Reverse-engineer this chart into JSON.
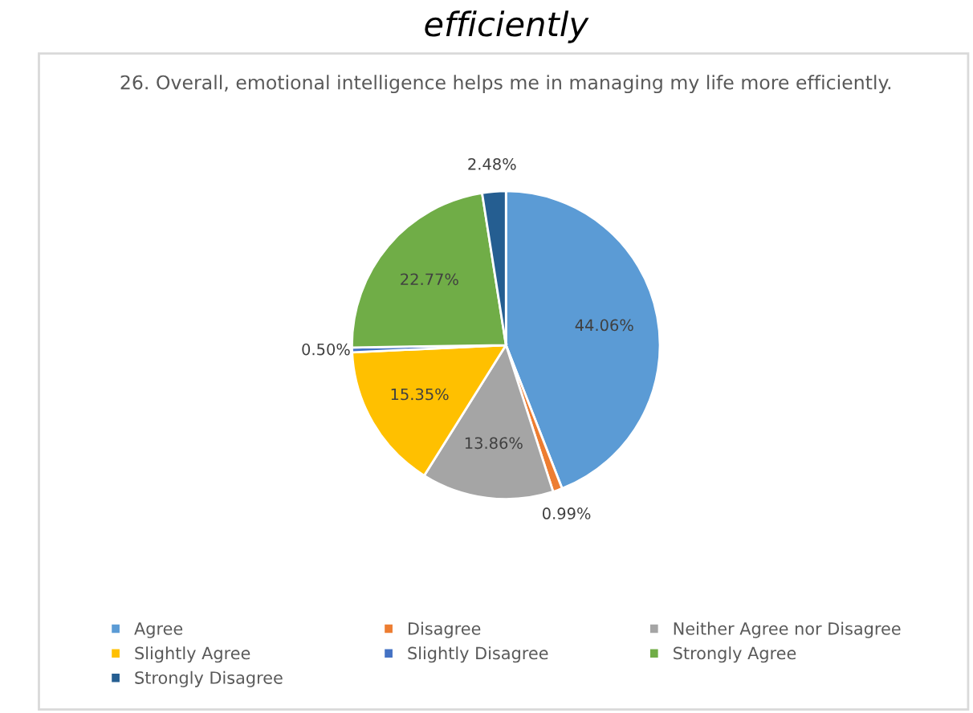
{
  "chart_data": {
    "type": "pie",
    "title": "26. Overall, emotional intelligence helps me in managing my life more efficiently.",
    "annotations": [
      "efficiently"
    ],
    "categories": [
      "Agree",
      "Disagree",
      "Neither Agree nor Disagree",
      "Slightly Agree",
      "Slightly Disagree",
      "Strongly Agree",
      "Strongly Disagree"
    ],
    "values": [
      44.06,
      0.99,
      13.86,
      15.35,
      0.5,
      22.77,
      2.48
    ],
    "value_labels": [
      "44.06%",
      "0.99%",
      "13.86%",
      "15.35%",
      "0.50%",
      "22.77%",
      "2.48%"
    ],
    "colors": [
      "#5b9bd5",
      "#ed7d31",
      "#a5a5a5",
      "#ffc000",
      "#4472c4",
      "#70ad47",
      "#255e91"
    ],
    "legend": "bottom"
  }
}
